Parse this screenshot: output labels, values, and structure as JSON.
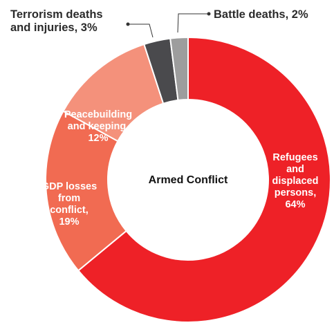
{
  "chart_data": {
    "type": "pie",
    "center_label": "Armed Conflict",
    "slices": [
      {
        "label": [
          "Refugees",
          "and",
          "displaced",
          "persons,",
          "64%"
        ],
        "value": 64,
        "color": "#ee2127",
        "label_position": "inside"
      },
      {
        "label": [
          "GDP losses",
          "from",
          "conflict,",
          "19%"
        ],
        "value": 19,
        "color": "#f16b52",
        "label_position": "inside"
      },
      {
        "label": [
          "Peacebuilding",
          "and keeping,",
          "12%"
        ],
        "value": 12,
        "color": "#f4917b",
        "label_position": "inside"
      },
      {
        "label": [
          "Terrorism deaths",
          "and injuries, 3%"
        ],
        "value": 3,
        "color": "#4a4a4d",
        "label_position": "outside"
      },
      {
        "label": [
          "Battle deaths, 2%"
        ],
        "value": 2,
        "color": "#9d9d9d",
        "label_position": "outside"
      }
    ]
  }
}
